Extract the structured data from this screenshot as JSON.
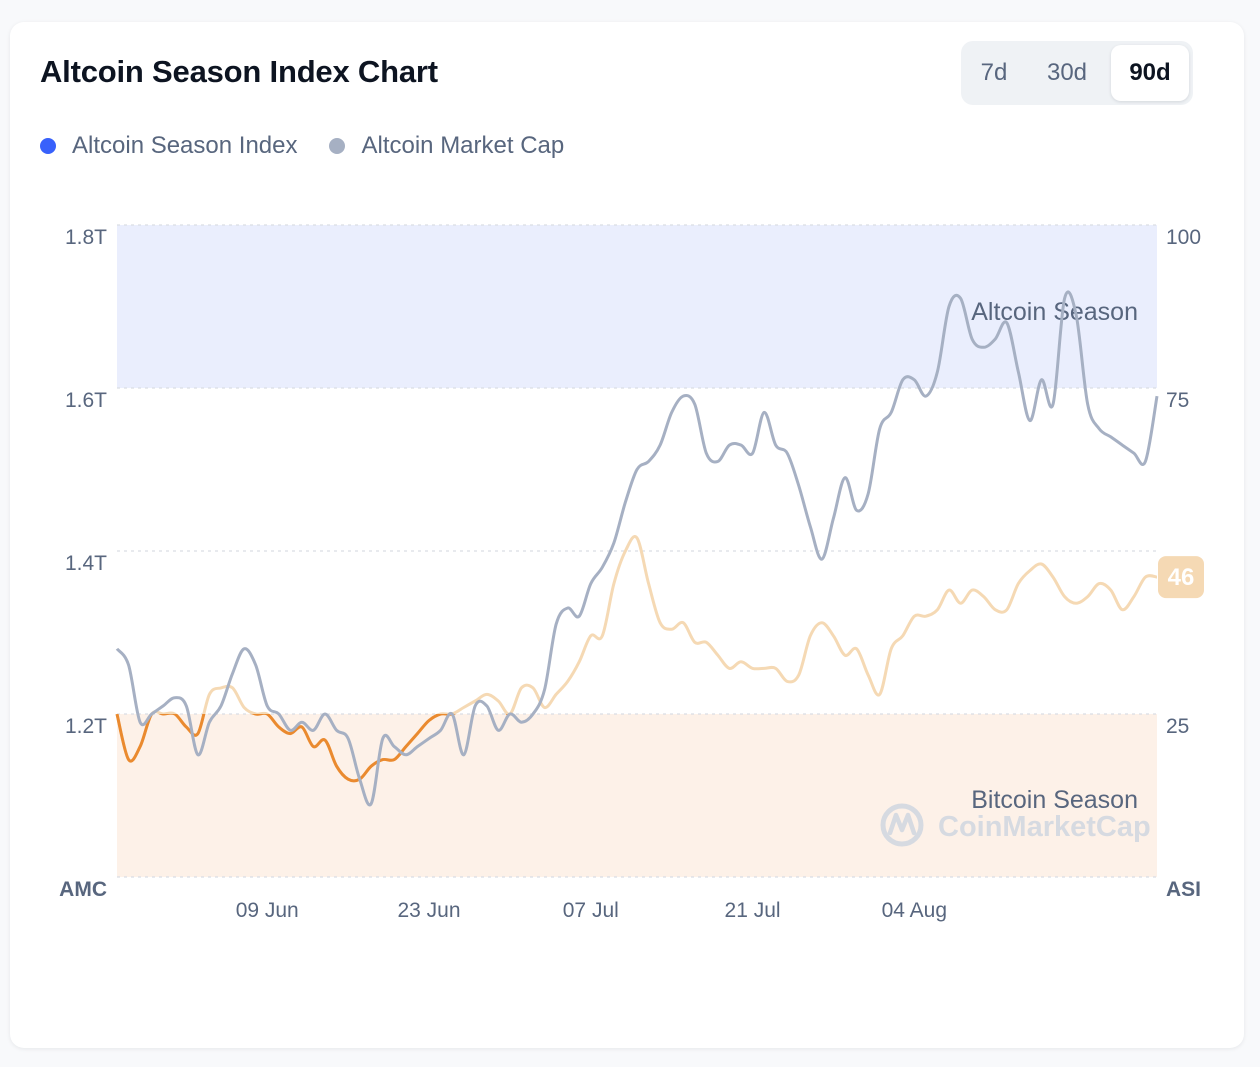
{
  "header": {
    "title": "Altcoin Season Index Chart",
    "ranges": [
      "7d",
      "30d",
      "90d"
    ],
    "active_range": "90d"
  },
  "legend": [
    {
      "label": "Altcoin Season Index",
      "color": "#3861fb"
    },
    {
      "label": "Altcoin Market Cap",
      "color": "#a6b0c3"
    }
  ],
  "colors": {
    "altcoin_zone": "#eaeefd",
    "bitcoin_zone": "#fdf1e8",
    "asi_line": "#f5d9b4",
    "asi_line_bitcoin_zone": "#ea8a2f",
    "asi_line_altcoin_zone": "#c5d0f6",
    "amc_line": "#a6b0c3",
    "badge": "#f5d9b4"
  },
  "zones": {
    "altcoin_label": "Altcoin Season",
    "bitcoin_label": "Bitcoin Season",
    "watermark": "CoinMarketCap"
  },
  "chart_data": {
    "type": "line",
    "title": "Altcoin Season Index Chart",
    "x_ticks": [
      "09 Jun",
      "23 Jun",
      "07 Jul",
      "21 Jul",
      "04 Aug"
    ],
    "x_range": [
      "2025-05-27",
      "2025-08-25"
    ],
    "left_axis": {
      "name": "AMC",
      "ticks": [
        "1.8T",
        "1.6T",
        "1.4T",
        "1.2T"
      ],
      "tick_values": [
        1.8,
        1.6,
        1.4,
        1.2
      ],
      "range": [
        1.0,
        1.8
      ]
    },
    "right_axis": {
      "name": "ASI",
      "ticks": [
        "100",
        "75",
        "25"
      ],
      "tick_values": [
        100,
        75,
        25
      ],
      "range": [
        0,
        100
      ]
    },
    "grid": true,
    "legend_position": "top-left",
    "series": [
      {
        "name": "Altcoin Market Cap",
        "axis": "left",
        "x": [
          "2025-05-27",
          "2025-05-28",
          "2025-05-29",
          "2025-05-30",
          "2025-05-31",
          "2025-06-01",
          "2025-06-02",
          "2025-06-03",
          "2025-06-04",
          "2025-06-05",
          "2025-06-06",
          "2025-06-07",
          "2025-06-08",
          "2025-06-09",
          "2025-06-10",
          "2025-06-11",
          "2025-06-12",
          "2025-06-13",
          "2025-06-14",
          "2025-06-15",
          "2025-06-16",
          "2025-06-17",
          "2025-06-18",
          "2025-06-19",
          "2025-06-20",
          "2025-06-21",
          "2025-06-22",
          "2025-06-23",
          "2025-06-24",
          "2025-06-25",
          "2025-06-26",
          "2025-06-27",
          "2025-06-28",
          "2025-06-29",
          "2025-06-30",
          "2025-07-01",
          "2025-07-02",
          "2025-07-03",
          "2025-07-04",
          "2025-07-05",
          "2025-07-06",
          "2025-07-07",
          "2025-07-08",
          "2025-07-09",
          "2025-07-10",
          "2025-07-11",
          "2025-07-12",
          "2025-07-13",
          "2025-07-14",
          "2025-07-15",
          "2025-07-16",
          "2025-07-17",
          "2025-07-18",
          "2025-07-19",
          "2025-07-20",
          "2025-07-21",
          "2025-07-22",
          "2025-07-23",
          "2025-07-24",
          "2025-07-25",
          "2025-07-26",
          "2025-07-27",
          "2025-07-28",
          "2025-07-29",
          "2025-07-30",
          "2025-07-31",
          "2025-08-01",
          "2025-08-02",
          "2025-08-03",
          "2025-08-04",
          "2025-08-05",
          "2025-08-06",
          "2025-08-07",
          "2025-08-08",
          "2025-08-09",
          "2025-08-10",
          "2025-08-11",
          "2025-08-12",
          "2025-08-13",
          "2025-08-14",
          "2025-08-15",
          "2025-08-16",
          "2025-08-17",
          "2025-08-18",
          "2025-08-19",
          "2025-08-20",
          "2025-08-21",
          "2025-08-22",
          "2025-08-23",
          "2025-08-24",
          "2025-08-25"
        ],
        "values": [
          1.28,
          1.26,
          1.19,
          1.2,
          1.21,
          1.22,
          1.21,
          1.15,
          1.19,
          1.21,
          1.25,
          1.28,
          1.26,
          1.21,
          1.2,
          1.18,
          1.19,
          1.18,
          1.2,
          1.18,
          1.17,
          1.12,
          1.09,
          1.17,
          1.16,
          1.15,
          1.16,
          1.17,
          1.18,
          1.2,
          1.15,
          1.21,
          1.21,
          1.18,
          1.2,
          1.19,
          1.2,
          1.23,
          1.31,
          1.33,
          1.32,
          1.36,
          1.38,
          1.41,
          1.46,
          1.5,
          1.51,
          1.53,
          1.57,
          1.59,
          1.58,
          1.52,
          1.51,
          1.53,
          1.53,
          1.52,
          1.57,
          1.53,
          1.52,
          1.48,
          1.43,
          1.39,
          1.44,
          1.49,
          1.45,
          1.47,
          1.55,
          1.57,
          1.61,
          1.61,
          1.59,
          1.62,
          1.7,
          1.71,
          1.66,
          1.65,
          1.66,
          1.68,
          1.62,
          1.56,
          1.61,
          1.58,
          1.71,
          1.69,
          1.58,
          1.55,
          1.54,
          1.53,
          1.52,
          1.51,
          1.59
        ],
        "color": "#a6b0c3"
      },
      {
        "name": "Altcoin Season Index",
        "axis": "right",
        "x": [
          "2025-05-27",
          "2025-05-28",
          "2025-05-29",
          "2025-05-30",
          "2025-05-31",
          "2025-06-01",
          "2025-06-02",
          "2025-06-03",
          "2025-06-04",
          "2025-06-05",
          "2025-06-06",
          "2025-06-07",
          "2025-06-08",
          "2025-06-09",
          "2025-06-10",
          "2025-06-11",
          "2025-06-12",
          "2025-06-13",
          "2025-06-14",
          "2025-06-15",
          "2025-06-16",
          "2025-06-17",
          "2025-06-18",
          "2025-06-19",
          "2025-06-20",
          "2025-06-21",
          "2025-06-22",
          "2025-06-23",
          "2025-06-24",
          "2025-06-25",
          "2025-06-26",
          "2025-06-27",
          "2025-06-28",
          "2025-06-29",
          "2025-06-30",
          "2025-07-01",
          "2025-07-02",
          "2025-07-03",
          "2025-07-04",
          "2025-07-05",
          "2025-07-06",
          "2025-07-07",
          "2025-07-08",
          "2025-07-09",
          "2025-07-10",
          "2025-07-11",
          "2025-07-12",
          "2025-07-13",
          "2025-07-14",
          "2025-07-15",
          "2025-07-16",
          "2025-07-17",
          "2025-07-18",
          "2025-07-19",
          "2025-07-20",
          "2025-07-21",
          "2025-07-22",
          "2025-07-23",
          "2025-07-24",
          "2025-07-25",
          "2025-07-26",
          "2025-07-27",
          "2025-07-28",
          "2025-07-29",
          "2025-07-30",
          "2025-07-31",
          "2025-08-01",
          "2025-08-02",
          "2025-08-03",
          "2025-08-04",
          "2025-08-05",
          "2025-08-06",
          "2025-08-07",
          "2025-08-08",
          "2025-08-09",
          "2025-08-10",
          "2025-08-11",
          "2025-08-12",
          "2025-08-13",
          "2025-08-14",
          "2025-08-15",
          "2025-08-16",
          "2025-08-17",
          "2025-08-18",
          "2025-08-19",
          "2025-08-20",
          "2025-08-21",
          "2025-08-22",
          "2025-08-23",
          "2025-08-24",
          "2025-08-25"
        ],
        "values": [
          25,
          18,
          20,
          25,
          25,
          25,
          23,
          22,
          28,
          29,
          29,
          26,
          25,
          25,
          23,
          22,
          23,
          20,
          21,
          17,
          15,
          15,
          17,
          18,
          18,
          20,
          22,
          24,
          25,
          25,
          26,
          27,
          28,
          27,
          25,
          29,
          29,
          26,
          28,
          30,
          33,
          37,
          37,
          45,
          50,
          52,
          45,
          39,
          38,
          39,
          36,
          36,
          34,
          32,
          33,
          32,
          32,
          32,
          30,
          31,
          37,
          39,
          37,
          34,
          35,
          31,
          28,
          35,
          37,
          40,
          40,
          41,
          44,
          42,
          44,
          43,
          41,
          41,
          45,
          47,
          48,
          46,
          43,
          42,
          43,
          45,
          44,
          41,
          43,
          46,
          46
        ],
        "color": "#f5d9b4"
      }
    ],
    "current_value": "46"
  }
}
